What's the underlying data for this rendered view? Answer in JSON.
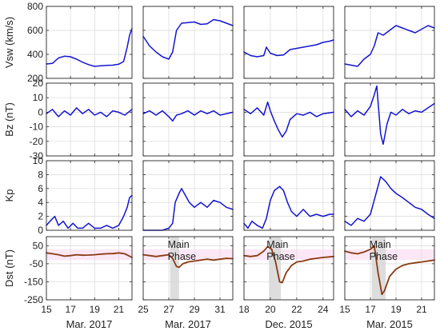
{
  "chart_data": {
    "type": "line",
    "layout": "4 rows x 4 columns of panels",
    "colors": {
      "blue": "#1414d2",
      "dst": "#8a3a12",
      "band": "#f9d3ef",
      "shade": "#d9d9d9"
    },
    "rows": [
      {
        "id": "vsw",
        "ylabel": "Vsw (km/s)",
        "ylim": [
          200,
          800
        ],
        "yticks": [
          200,
          400,
          600,
          800
        ],
        "color": "#1414d2"
      },
      {
        "id": "bz",
        "ylabel": "Bz (nT)",
        "ylim": [
          -30,
          20
        ],
        "yticks": [
          -30,
          -20,
          -10,
          0,
          10,
          20
        ],
        "color": "#1414d2"
      },
      {
        "id": "kp",
        "ylabel": "Kp",
        "ylim": [
          0,
          10
        ],
        "yticks": [
          0,
          2,
          4,
          6,
          8,
          10
        ],
        "color": "#1414d2"
      },
      {
        "id": "dst",
        "ylabel": "Dst (nT)",
        "ylim": [
          -250,
          100
        ],
        "yticks": [
          -250,
          -150,
          -50,
          50
        ],
        "color": "#8a3a12"
      }
    ],
    "columns": [
      {
        "xlabel": "Mar. 2017",
        "xlim": [
          15,
          22.1
        ],
        "xticks": [
          15,
          17,
          19,
          21
        ],
        "annotation": null,
        "vsw": [
          [
            15,
            320
          ],
          [
            15.5,
            325
          ],
          [
            16,
            370
          ],
          [
            16.5,
            385
          ],
          [
            17,
            380
          ],
          [
            17.5,
            360
          ],
          [
            18,
            335
          ],
          [
            18.5,
            315
          ],
          [
            19,
            300
          ],
          [
            19.5,
            305
          ],
          [
            20,
            308
          ],
          [
            20.5,
            310
          ],
          [
            21,
            318
          ],
          [
            21.4,
            340
          ],
          [
            21.7,
            460
          ],
          [
            21.9,
            560
          ],
          [
            22.1,
            615
          ]
        ],
        "bz": [
          [
            15,
            -1
          ],
          [
            15.5,
            2
          ],
          [
            16,
            -3
          ],
          [
            16.5,
            1
          ],
          [
            17,
            -2
          ],
          [
            17.5,
            3
          ],
          [
            18,
            -1
          ],
          [
            18.5,
            2
          ],
          [
            19,
            -2
          ],
          [
            19.5,
            0
          ],
          [
            20,
            -3
          ],
          [
            20.5,
            1
          ],
          [
            21,
            0
          ],
          [
            21.5,
            -2
          ],
          [
            22.1,
            2
          ]
        ],
        "kp": [
          [
            15,
            0.7
          ],
          [
            15.3,
            1.3
          ],
          [
            15.7,
            2.0
          ],
          [
            16.0,
            0.7
          ],
          [
            16.4,
            1.3
          ],
          [
            16.8,
            0.3
          ],
          [
            17.2,
            1.0
          ],
          [
            17.6,
            0.3
          ],
          [
            18.0,
            0.3
          ],
          [
            18.5,
            1.0
          ],
          [
            19.0,
            0.3
          ],
          [
            19.5,
            0.3
          ],
          [
            20.0,
            0.7
          ],
          [
            20.5,
            0.3
          ],
          [
            21.0,
            0.7
          ],
          [
            21.4,
            2.0
          ],
          [
            21.7,
            3.3
          ],
          [
            21.9,
            4.7
          ],
          [
            22.1,
            5.0
          ]
        ],
        "dst": [
          [
            15,
            10
          ],
          [
            15.5,
            5
          ],
          [
            16,
            0
          ],
          [
            16.5,
            -8
          ],
          [
            17,
            -5
          ],
          [
            17.5,
            0
          ],
          [
            18,
            -3
          ],
          [
            18.5,
            -2
          ],
          [
            19,
            0
          ],
          [
            19.5,
            3
          ],
          [
            20,
            5
          ],
          [
            20.5,
            6
          ],
          [
            21,
            10
          ],
          [
            21.5,
            5
          ],
          [
            21.8,
            -5
          ],
          [
            22.1,
            -15
          ]
        ]
      },
      {
        "xlabel": "Mar. 2017",
        "xlim": [
          25,
          32
        ],
        "xticks": [
          25,
          27,
          29,
          31
        ],
        "annotation": {
          "line1": "Main",
          "line2": "Phase",
          "shade_x": [
            27.1,
            27.8
          ]
        },
        "vsw": [
          [
            25,
            550
          ],
          [
            25.5,
            470
          ],
          [
            26,
            420
          ],
          [
            26.5,
            380
          ],
          [
            27,
            360
          ],
          [
            27.3,
            420
          ],
          [
            27.6,
            600
          ],
          [
            28,
            660
          ],
          [
            28.5,
            665
          ],
          [
            29,
            670
          ],
          [
            29.5,
            650
          ],
          [
            30,
            655
          ],
          [
            30.5,
            690
          ],
          [
            31,
            680
          ],
          [
            31.5,
            660
          ],
          [
            32,
            640
          ]
        ],
        "bz": [
          [
            25,
            -1
          ],
          [
            25.5,
            1
          ],
          [
            26,
            -2
          ],
          [
            26.5,
            1
          ],
          [
            27,
            -3
          ],
          [
            27.3,
            -6
          ],
          [
            27.6,
            -2
          ],
          [
            28,
            -1
          ],
          [
            28.5,
            1
          ],
          [
            29,
            -2
          ],
          [
            29.5,
            1
          ],
          [
            30,
            -1
          ],
          [
            30.5,
            1
          ],
          [
            31,
            -2
          ],
          [
            32,
            0
          ]
        ],
        "kp": [
          [
            25,
            0.0
          ],
          [
            25.5,
            0.0
          ],
          [
            26.0,
            0.0
          ],
          [
            26.5,
            0.0
          ],
          [
            27.0,
            0.3
          ],
          [
            27.3,
            1.0
          ],
          [
            27.5,
            4.0
          ],
          [
            27.8,
            5.3
          ],
          [
            28.0,
            6.0
          ],
          [
            28.3,
            5.0
          ],
          [
            28.6,
            4.0
          ],
          [
            29.0,
            3.3
          ],
          [
            29.5,
            4.0
          ],
          [
            30.0,
            3.3
          ],
          [
            30.5,
            4.3
          ],
          [
            31.0,
            4.0
          ],
          [
            31.5,
            3.3
          ],
          [
            32.0,
            3.0
          ]
        ],
        "dst": [
          [
            25,
            0
          ],
          [
            25.5,
            -5
          ],
          [
            26,
            -10
          ],
          [
            26.5,
            -5
          ],
          [
            27,
            0
          ],
          [
            27.3,
            -20
          ],
          [
            27.6,
            -65
          ],
          [
            27.8,
            -70
          ],
          [
            28.1,
            -50
          ],
          [
            28.5,
            -40
          ],
          [
            29,
            -35
          ],
          [
            29.5,
            -30
          ],
          [
            30,
            -25
          ],
          [
            30.5,
            -30
          ],
          [
            31,
            -25
          ],
          [
            31.5,
            -20
          ],
          [
            32,
            -22
          ]
        ]
      },
      {
        "xlabel": "Dec. 2015",
        "xlim": [
          18,
          24.8
        ],
        "xticks": [
          18,
          20,
          22,
          24
        ],
        "annotation": {
          "line1": "Main",
          "line2": "Phase",
          "shade_x": [
            19.9,
            20.8
          ]
        },
        "vsw": [
          [
            18,
            420
          ],
          [
            18.5,
            390
          ],
          [
            19,
            380
          ],
          [
            19.5,
            390
          ],
          [
            19.7,
            460
          ],
          [
            20,
            410
          ],
          [
            20.5,
            390
          ],
          [
            21,
            395
          ],
          [
            21.5,
            440
          ],
          [
            22,
            450
          ],
          [
            22.5,
            460
          ],
          [
            23,
            470
          ],
          [
            23.5,
            480
          ],
          [
            24,
            500
          ],
          [
            24.5,
            510
          ],
          [
            24.8,
            520
          ]
        ],
        "bz": [
          [
            18,
            2
          ],
          [
            18.5,
            -1
          ],
          [
            19,
            3
          ],
          [
            19.5,
            -2
          ],
          [
            19.8,
            7
          ],
          [
            20,
            1
          ],
          [
            20.3,
            -6
          ],
          [
            20.6,
            -12
          ],
          [
            20.9,
            -17
          ],
          [
            21.2,
            -13
          ],
          [
            21.5,
            -5
          ],
          [
            22,
            -1
          ],
          [
            22.5,
            -2
          ],
          [
            23,
            0
          ],
          [
            23.5,
            -3
          ],
          [
            24,
            -1
          ],
          [
            24.8,
            0
          ]
        ],
        "kp": [
          [
            18,
            1.0
          ],
          [
            18.3,
            0.3
          ],
          [
            18.6,
            1.3
          ],
          [
            19.0,
            0.7
          ],
          [
            19.4,
            0.3
          ],
          [
            19.7,
            1.7
          ],
          [
            20.0,
            4.3
          ],
          [
            20.3,
            5.7
          ],
          [
            20.7,
            6.3
          ],
          [
            21.0,
            5.7
          ],
          [
            21.3,
            4.0
          ],
          [
            21.6,
            2.7
          ],
          [
            22.0,
            2.0
          ],
          [
            22.5,
            3.0
          ],
          [
            23.0,
            2.0
          ],
          [
            23.5,
            2.3
          ],
          [
            24.0,
            2.0
          ],
          [
            24.5,
            2.3
          ],
          [
            24.8,
            2.3
          ]
        ],
        "dst": [
          [
            18,
            -5
          ],
          [
            18.5,
            -10
          ],
          [
            19,
            -5
          ],
          [
            19.5,
            20
          ],
          [
            19.8,
            45
          ],
          [
            20.1,
            30
          ],
          [
            20.4,
            -40
          ],
          [
            20.7,
            -150
          ],
          [
            20.9,
            -155
          ],
          [
            21.2,
            -100
          ],
          [
            21.6,
            -60
          ],
          [
            22,
            -40
          ],
          [
            22.5,
            -35
          ],
          [
            23,
            -25
          ],
          [
            23.5,
            -20
          ],
          [
            24,
            -15
          ],
          [
            24.8,
            -10
          ]
        ]
      },
      {
        "xlabel": "Mar. 2015",
        "xlim": [
          15,
          22
        ],
        "xticks": [
          15,
          17,
          19,
          21
        ],
        "annotation": {
          "line1": "Main",
          "line2": "Phase",
          "shade_x": [
            17.1,
            18.2
          ]
        },
        "vsw": [
          [
            15,
            320
          ],
          [
            15.5,
            310
          ],
          [
            16,
            300
          ],
          [
            16.5,
            360
          ],
          [
            17,
            400
          ],
          [
            17.3,
            470
          ],
          [
            17.6,
            580
          ],
          [
            18,
            560
          ],
          [
            18.5,
            600
          ],
          [
            19,
            640
          ],
          [
            19.5,
            620
          ],
          [
            20,
            600
          ],
          [
            20.5,
            580
          ],
          [
            21,
            610
          ],
          [
            21.5,
            640
          ],
          [
            22,
            620
          ]
        ],
        "bz": [
          [
            15,
            2
          ],
          [
            15.5,
            -3
          ],
          [
            16,
            1
          ],
          [
            16.5,
            -2
          ],
          [
            17,
            4
          ],
          [
            17.3,
            12
          ],
          [
            17.5,
            18
          ],
          [
            17.8,
            -15
          ],
          [
            18.0,
            -22
          ],
          [
            18.3,
            -8
          ],
          [
            18.6,
            0
          ],
          [
            19,
            -2
          ],
          [
            19.5,
            2
          ],
          [
            20,
            -1
          ],
          [
            20.5,
            1
          ],
          [
            21,
            0
          ],
          [
            21.5,
            3
          ],
          [
            22,
            6
          ]
        ],
        "kp": [
          [
            15,
            1.3
          ],
          [
            15.5,
            0.7
          ],
          [
            16.0,
            1.7
          ],
          [
            16.5,
            1.3
          ],
          [
            17.0,
            2.3
          ],
          [
            17.4,
            5.0
          ],
          [
            17.8,
            7.7
          ],
          [
            18.2,
            7.0
          ],
          [
            18.6,
            6.0
          ],
          [
            19.0,
            5.3
          ],
          [
            19.5,
            4.7
          ],
          [
            20.0,
            4.0
          ],
          [
            20.5,
            3.3
          ],
          [
            21.0,
            3.0
          ],
          [
            21.5,
            2.3
          ],
          [
            22.0,
            1.7
          ]
        ],
        "dst": [
          [
            15,
            20
          ],
          [
            15.5,
            10
          ],
          [
            16,
            5
          ],
          [
            16.5,
            15
          ],
          [
            17,
            30
          ],
          [
            17.3,
            50
          ],
          [
            17.6,
            -100
          ],
          [
            17.9,
            -220
          ],
          [
            18.1,
            -200
          ],
          [
            18.5,
            -120
          ],
          [
            19,
            -80
          ],
          [
            19.5,
            -60
          ],
          [
            20,
            -50
          ],
          [
            20.5,
            -45
          ],
          [
            21,
            -40
          ],
          [
            21.5,
            -35
          ],
          [
            22,
            -30
          ]
        ]
      }
    ]
  }
}
